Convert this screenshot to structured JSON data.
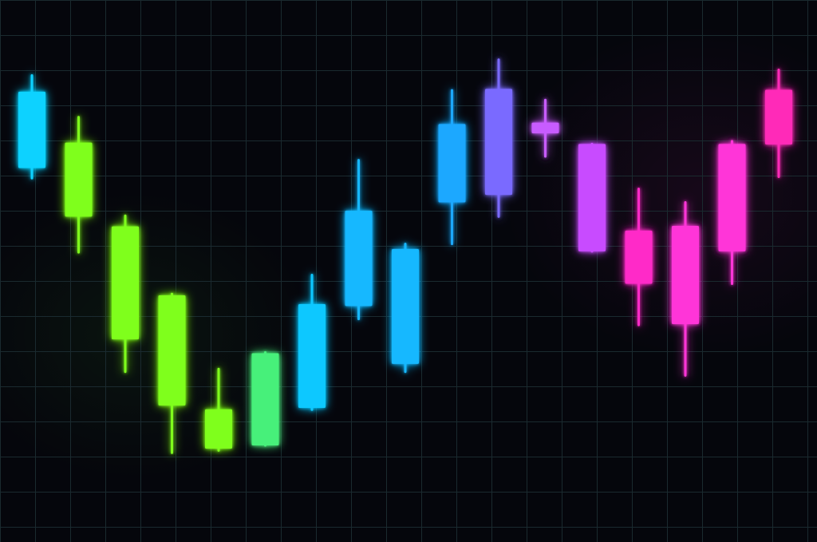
{
  "chart_data": {
    "type": "candlestick",
    "title": "",
    "xlabel": "",
    "ylabel": "",
    "ylim": [
      0,
      100
    ],
    "grid": true,
    "legend": "none",
    "background_color": "#05060c",
    "grid_color": "#1a2a2f",
    "candles": [
      {
        "index": 1,
        "open": 70.6,
        "close": 87.1,
        "high": 90.6,
        "low": 68.4,
        "color": "#10d2ff"
      },
      {
        "index": 2,
        "open": 76.1,
        "close": 60.1,
        "high": 81.6,
        "low": 52.4,
        "color": "#7fff1e"
      },
      {
        "index": 3,
        "open": 58.0,
        "close": 33.6,
        "high": 60.3,
        "low": 26.6,
        "color": "#7fff1e"
      },
      {
        "index": 4,
        "open": 43.1,
        "close": 19.3,
        "high": 43.4,
        "low": 9.1,
        "color": "#7fff1e"
      },
      {
        "index": 5,
        "open": 10.0,
        "close": 18.5,
        "high": 27.2,
        "low": 9.6,
        "color": "#7fff1e"
      },
      {
        "index": 6,
        "open": 10.7,
        "close": 30.6,
        "high": 30.8,
        "low": 10.7,
        "color": "#46f07a"
      },
      {
        "index": 7,
        "open": 18.8,
        "close": 41.2,
        "high": 47.5,
        "low": 18.4,
        "color": "#10c8ff"
      },
      {
        "index": 8,
        "open": 40.8,
        "close": 61.4,
        "high": 72.3,
        "low": 38.0,
        "color": "#15b8ff"
      },
      {
        "index": 9,
        "open": 28.3,
        "close": 53.1,
        "high": 54.2,
        "low": 26.6,
        "color": "#15b8ff"
      },
      {
        "index": 10,
        "open": 63.2,
        "close": 80.1,
        "high": 87.4,
        "low": 54.2,
        "color": "#1ea8ff"
      },
      {
        "index": 11,
        "open": 64.8,
        "close": 87.7,
        "high": 94.0,
        "low": 60.1,
        "color": "#7a6bff"
      },
      {
        "index": 12,
        "open": 78.1,
        "close": 80.4,
        "high": 85.3,
        "low": 73.1,
        "color": "#c85cff"
      },
      {
        "index": 13,
        "open": 75.8,
        "close": 52.6,
        "high": 75.8,
        "low": 52.6,
        "color": "#c84bff"
      },
      {
        "index": 14,
        "open": 57.1,
        "close": 45.6,
        "high": 66.1,
        "low": 36.7,
        "color": "#ff2cc8"
      },
      {
        "index": 15,
        "open": 58.1,
        "close": 36.9,
        "high": 63.2,
        "low": 25.8,
        "color": "#ff35d8"
      },
      {
        "index": 16,
        "open": 52.6,
        "close": 75.8,
        "high": 76.4,
        "low": 45.6,
        "color": "#ff35d8"
      },
      {
        "index": 17,
        "open": 75.7,
        "close": 87.5,
        "high": 91.8,
        "low": 68.7,
        "color": "#ff2cb8"
      }
    ]
  }
}
